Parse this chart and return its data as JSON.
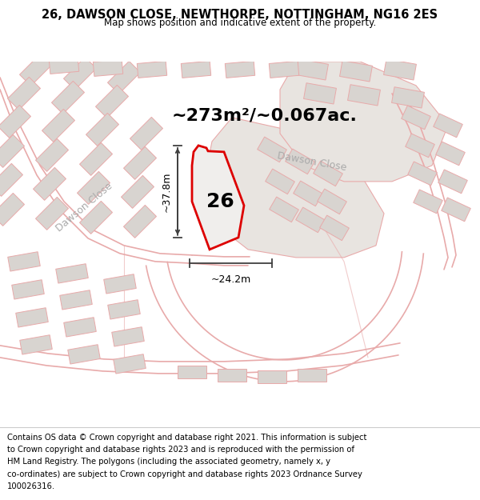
{
  "title_line1": "26, DAWSON CLOSE, NEWTHORPE, NOTTINGHAM, NG16 2ES",
  "title_line2": "Map shows position and indicative extent of the property.",
  "footer_lines": [
    "Contains OS data © Crown copyright and database right 2021. This information is subject",
    "to Crown copyright and database rights 2023 and is reproduced with the permission of",
    "HM Land Registry. The polygons (including the associated geometry, namely x, y",
    "co-ordinates) are subject to Crown copyright and database rights 2023 Ordnance Survey",
    "100026316."
  ],
  "area_text": "~273m²/~0.067ac.",
  "dim_horizontal": "~24.2m",
  "dim_vertical": "~37.8m",
  "plot_number": "26",
  "road_label_left": "Dawson Close",
  "road_label_top": "Dawson Close",
  "map_bg": "#ffffff",
  "plot_fill": "#f0eeec",
  "plot_edge": "#dd0000",
  "road_fill": "#f5f3f0",
  "road_edge": "#e8aaaa",
  "parcel_fill": "#e8e4e0",
  "parcel_edge": "#c8c4c0",
  "bld_fill": "#d8d4d0",
  "bld_edge": "#c0bcb8",
  "dim_line_color": "#404040",
  "road_label_color": "#aaaaaa",
  "title_fontsize": 10.5,
  "subtitle_fontsize": 8.5,
  "area_fontsize": 16,
  "plot_num_fontsize": 18,
  "dim_fontsize": 9,
  "road_label_fontsize": 9,
  "footer_fontsize": 7.2
}
